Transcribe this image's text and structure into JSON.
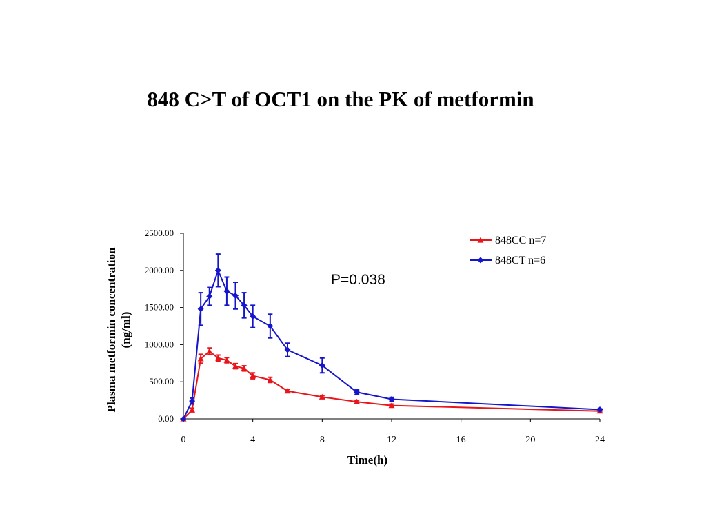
{
  "slide": {
    "title": "848 C>T of OCT1 on the PK of metformin"
  },
  "chart_data": {
    "type": "line",
    "title": "848 C>T of OCT1 on the PK of metformin",
    "xlabel": "Time(h)",
    "ylabel_line1": "Plasma metformin concentration",
    "ylabel_line2": "(ng/ml)",
    "xlim": [
      0,
      24
    ],
    "ylim": [
      0,
      2500
    ],
    "x_ticks": [
      0,
      4,
      8,
      12,
      16,
      20,
      24
    ],
    "y_ticks": [
      0,
      500,
      1000,
      1500,
      2000,
      2500
    ],
    "y_tick_labels": [
      "0.00",
      "500.00",
      "1000.00",
      "1500.00",
      "2000.00",
      "2500.00"
    ],
    "grid": false,
    "legend_position": "top-right",
    "annotation": "P=0.038",
    "series": [
      {
        "name": "848CC n=7",
        "color": "#e8161b",
        "marker": "triangle",
        "x": [
          0,
          0.5,
          1,
          1.5,
          2,
          2.5,
          3,
          3.5,
          4,
          5,
          6,
          8,
          10,
          12,
          24
        ],
        "y": [
          0,
          120,
          810,
          910,
          820,
          790,
          710,
          680,
          580,
          525,
          375,
          295,
          230,
          180,
          105
        ],
        "error": [
          0,
          25,
          60,
          45,
          40,
          35,
          35,
          35,
          40,
          35,
          20,
          20,
          20,
          20,
          10
        ]
      },
      {
        "name": "848CT n=6",
        "color": "#1515cc",
        "marker": "diamond",
        "x": [
          0,
          0.5,
          1,
          1.5,
          2,
          2.5,
          3,
          3.5,
          4,
          5,
          6,
          8,
          10,
          12,
          24
        ],
        "y": [
          0,
          240,
          1480,
          1650,
          2000,
          1720,
          1660,
          1530,
          1380,
          1250,
          930,
          720,
          360,
          265,
          125
        ],
        "error": [
          0,
          40,
          220,
          120,
          220,
          190,
          180,
          170,
          150,
          160,
          90,
          100,
          30,
          25,
          10
        ]
      }
    ]
  }
}
